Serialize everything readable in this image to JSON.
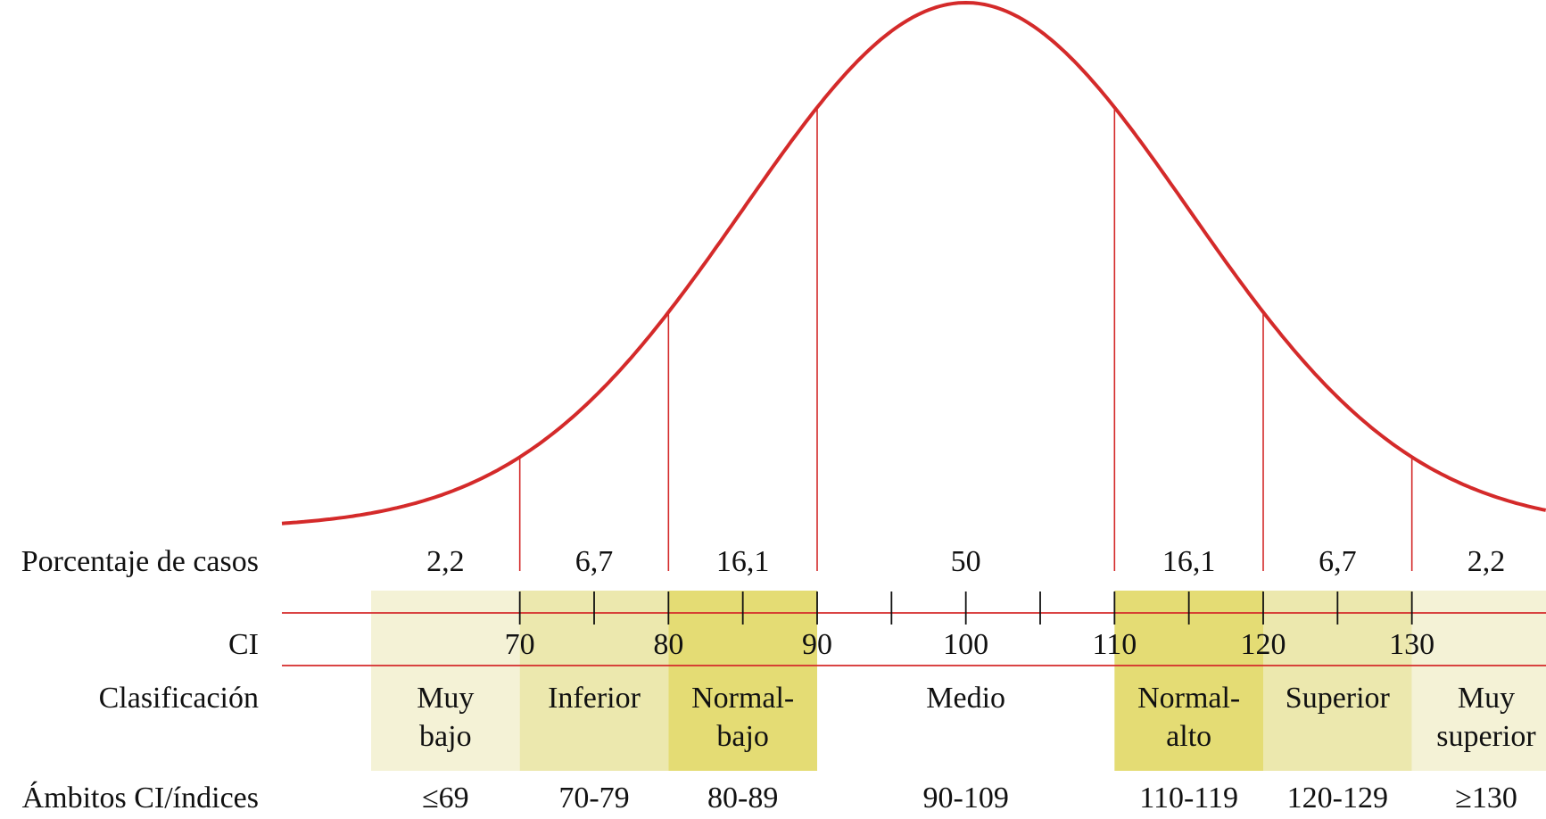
{
  "chart_data": {
    "type": "area",
    "distribution": "normal",
    "mean": 100,
    "sd": 15,
    "x_range": [
      54,
      150
    ],
    "row_labels": {
      "percent": "Porcentaje de casos",
      "ci": "CI",
      "classification": "Clasificación",
      "ranges": "Ámbitos CI/índices"
    },
    "boundaries": [
      70,
      80,
      90,
      110,
      120,
      130
    ],
    "ticks": [
      70,
      75,
      80,
      85,
      90,
      95,
      100,
      105,
      110,
      115,
      120,
      125,
      130
    ],
    "tick_labels": [
      {
        "x": 70,
        "label": "70"
      },
      {
        "x": 80,
        "label": "80"
      },
      {
        "x": 90,
        "label": "90"
      },
      {
        "x": 100,
        "label": "100"
      },
      {
        "x": 110,
        "label": "110"
      },
      {
        "x": 120,
        "label": "120"
      },
      {
        "x": 130,
        "label": "130"
      }
    ],
    "bands": [
      {
        "from": 60,
        "to": 70,
        "percent": "2,2",
        "class_lines": [
          "Muy",
          "bajo"
        ],
        "range": "≤69",
        "color": "#f4f2d6"
      },
      {
        "from": 70,
        "to": 80,
        "percent": "6,7",
        "class_lines": [
          "Inferior"
        ],
        "range": "70-79",
        "color": "#ece8ae"
      },
      {
        "from": 80,
        "to": 90,
        "percent": "16,1",
        "class_lines": [
          "Normal-",
          "bajo"
        ],
        "range": "80-89",
        "color": "#e4dc74"
      },
      {
        "from": 90,
        "to": 110,
        "percent": "50",
        "class_lines": [
          "Medio"
        ],
        "range": "90-109",
        "color": "#ffffff"
      },
      {
        "from": 110,
        "to": 120,
        "percent": "16,1",
        "class_lines": [
          "Normal-",
          "alto"
        ],
        "range": "110-119",
        "color": "#e4dc74"
      },
      {
        "from": 120,
        "to": 130,
        "percent": "6,7",
        "class_lines": [
          "Superior"
        ],
        "range": "120-129",
        "color": "#ece8ae"
      },
      {
        "from": 130,
        "to": 140,
        "percent": "2,2",
        "class_lines": [
          "Muy",
          "superior"
        ],
        "range": "≥130",
        "color": "#f4f2d6"
      }
    ],
    "curve_color": "#d42a2a",
    "line_color": "#d42a2a",
    "tick_color": "#111111"
  }
}
